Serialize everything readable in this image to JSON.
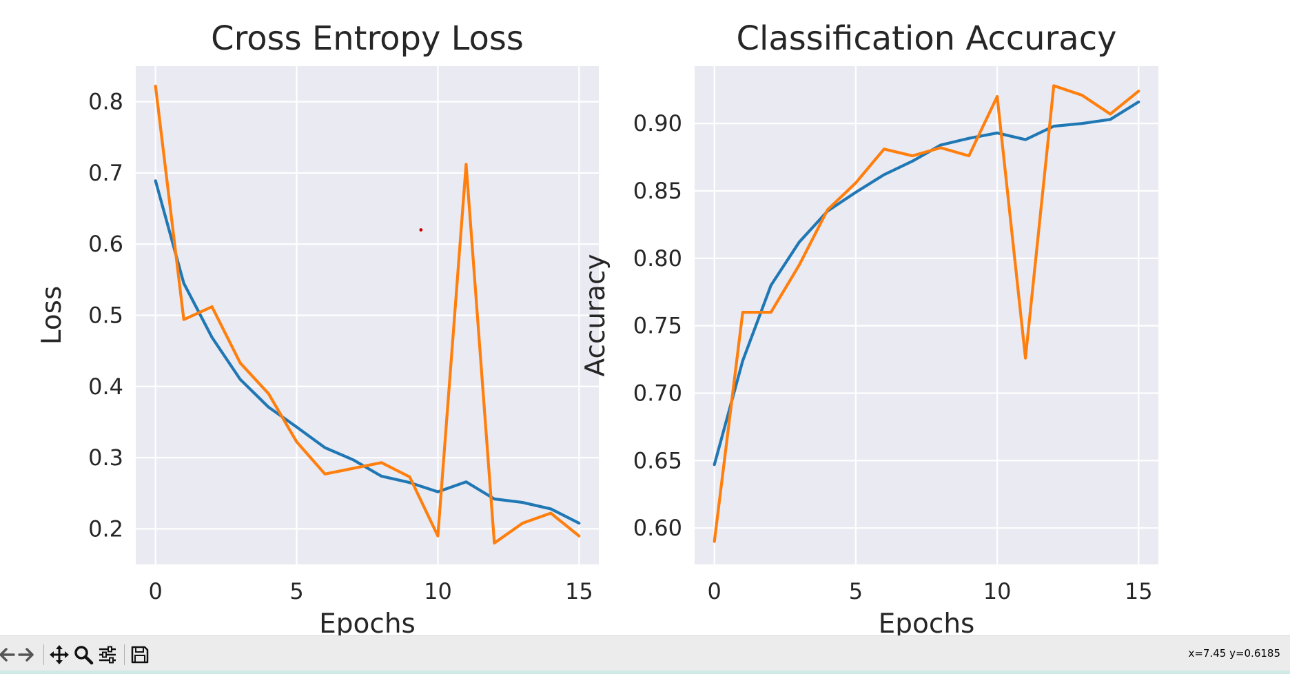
{
  "chart_data": [
    {
      "type": "line",
      "title": "Cross Entropy Loss",
      "xlabel": "Epochs",
      "ylabel": "Loss",
      "xlim": [
        -0.7,
        15.7
      ],
      "ylim": [
        0.15,
        0.85
      ],
      "xticks": [
        0,
        5,
        10,
        15
      ],
      "yticks": [
        0.2,
        0.3,
        0.4,
        0.5,
        0.6,
        0.7,
        0.8
      ],
      "ytick_labels": [
        "0.2",
        "0.3",
        "0.4",
        "0.5",
        "0.6",
        "0.7",
        "0.8"
      ],
      "grid": true,
      "x": [
        0,
        1,
        2,
        3,
        4,
        5,
        6,
        7,
        8,
        9,
        10,
        11,
        12,
        13,
        14,
        15
      ],
      "series": [
        {
          "color": "#1f77b4",
          "values": [
            0.689,
            0.545,
            0.469,
            0.41,
            0.371,
            0.343,
            0.314,
            0.297,
            0.274,
            0.265,
            0.252,
            0.266,
            0.242,
            0.237,
            0.228,
            0.208
          ]
        },
        {
          "color": "#ff7f0e",
          "values": [
            0.822,
            0.494,
            0.512,
            0.433,
            0.39,
            0.322,
            0.277,
            0.285,
            0.293,
            0.273,
            0.19,
            0.712,
            0.18,
            0.208,
            0.222,
            0.19
          ]
        }
      ],
      "annotations": [
        {
          "kind": "point",
          "x": 9.4,
          "y": 0.62,
          "color": "#cc0000"
        }
      ]
    },
    {
      "type": "line",
      "title": "Classification Accuracy",
      "xlabel": "Epochs",
      "ylabel": "Accuracy",
      "xlim": [
        -0.7,
        15.7
      ],
      "ylim": [
        0.573,
        0.9425
      ],
      "xticks": [
        0,
        5,
        10,
        15
      ],
      "yticks": [
        0.6,
        0.65,
        0.7,
        0.75,
        0.8,
        0.85,
        0.9
      ],
      "ytick_labels": [
        "0.60",
        "0.65",
        "0.70",
        "0.75",
        "0.80",
        "0.85",
        "0.90"
      ],
      "grid": true,
      "x": [
        0,
        1,
        2,
        3,
        4,
        5,
        6,
        7,
        8,
        9,
        10,
        11,
        12,
        13,
        14,
        15
      ],
      "series": [
        {
          "color": "#1f77b4",
          "values": [
            0.647,
            0.724,
            0.78,
            0.812,
            0.835,
            0.849,
            0.862,
            0.872,
            0.884,
            0.889,
            0.893,
            0.888,
            0.898,
            0.9,
            0.903,
            0.916
          ]
        },
        {
          "color": "#ff7f0e",
          "values": [
            0.59,
            0.76,
            0.76,
            0.795,
            0.836,
            0.856,
            0.881,
            0.876,
            0.882,
            0.876,
            0.92,
            0.726,
            0.928,
            0.921,
            0.907,
            0.924
          ]
        }
      ]
    }
  ],
  "toolbar": {
    "buttons": [
      {
        "icon": "back-arrow-icon"
      },
      {
        "icon": "forward-arrow-icon"
      },
      {
        "icon": "pan-icon"
      },
      {
        "icon": "zoom-icon"
      },
      {
        "icon": "configure-subplots-icon"
      },
      {
        "icon": "save-icon"
      }
    ],
    "status": "x=7.45 y=0.6185"
  },
  "colors": {
    "axes_background": "#eaeaf2",
    "grid": "#ffffff",
    "text": "#262626",
    "toolbar_background": "#ececec"
  }
}
